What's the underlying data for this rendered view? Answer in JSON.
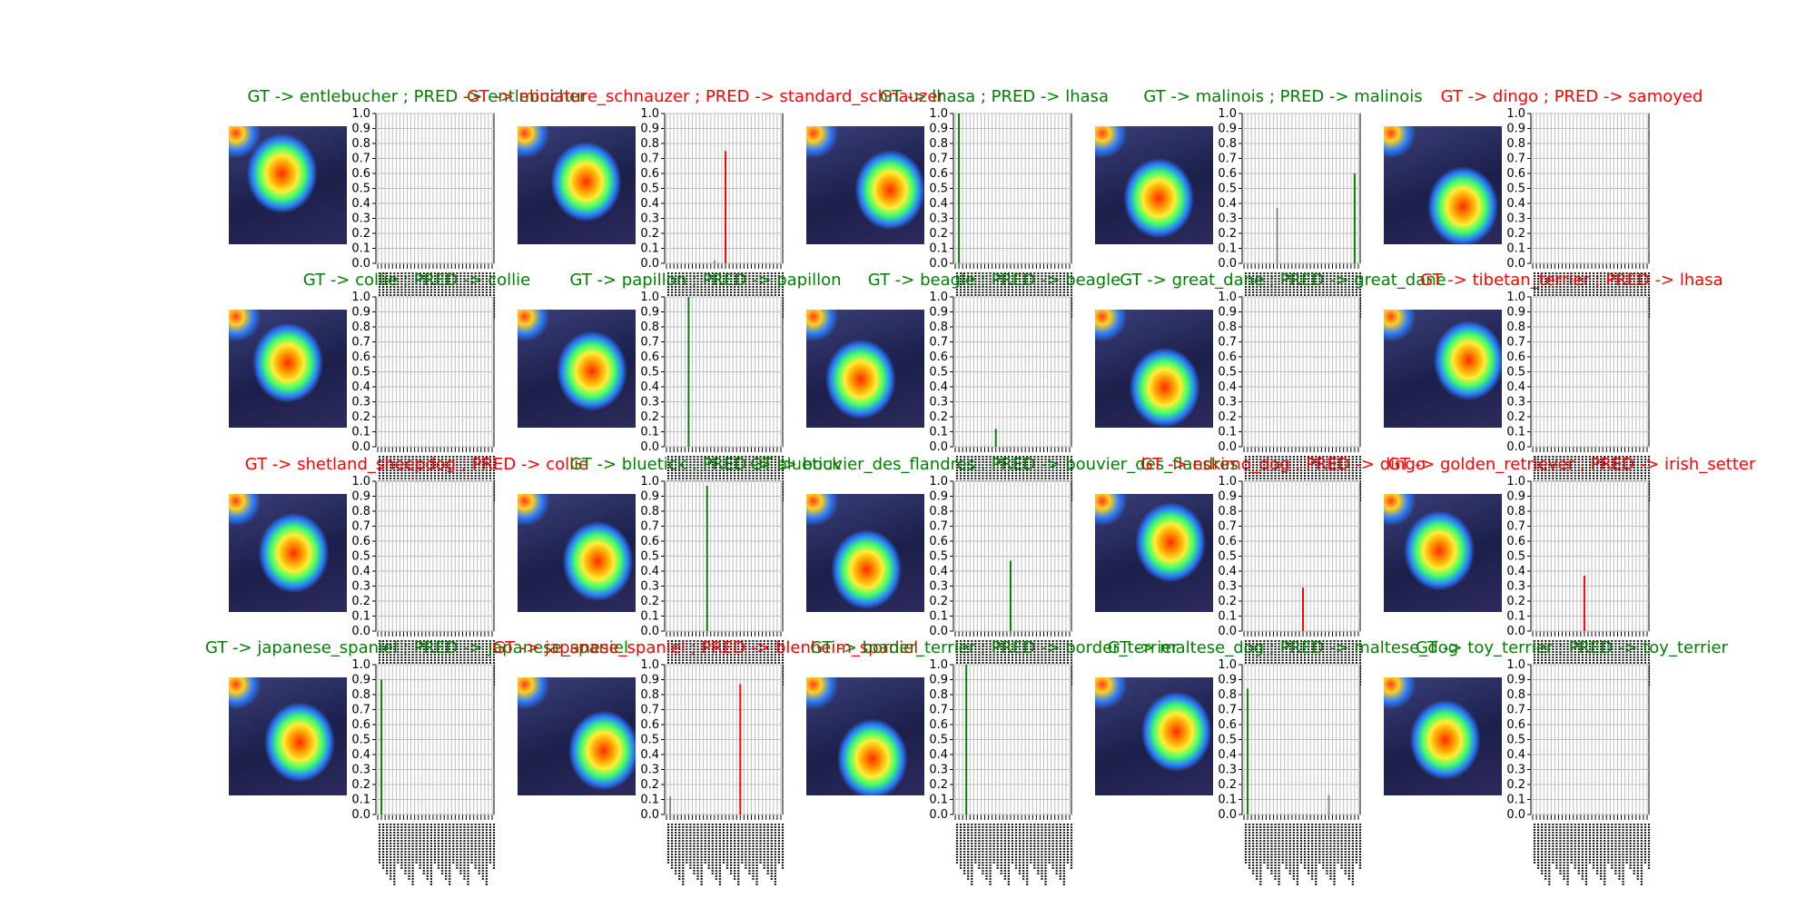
{
  "colors": {
    "correct": "#008000",
    "wrong": "#ff0000",
    "bar": "#bfbfbf"
  },
  "chart_data": {
    "type": "bar",
    "grid": true,
    "ylim": [
      0,
      1
    ],
    "yticks": [
      "0.0",
      "0.1",
      "0.2",
      "0.3",
      "0.4",
      "0.5",
      "0.6",
      "0.7",
      "0.8",
      "0.9",
      "1.0"
    ],
    "panels": [
      {
        "title": "GT -> entlebucher ; PRED -> entlebucher",
        "correct": true,
        "heat_icon": "heatmap-dog-icon",
        "peak_index": 0,
        "peak_value": 0.0,
        "second_index": 16,
        "second_value": 0.0
      },
      {
        "title": "GT -> miniature_schnauzer ; PRED -> standard_schnauzer",
        "correct": false,
        "heat_icon": "heatmap-dog-icon",
        "peak_index": 16,
        "peak_value": 0.75,
        "second_index": 13,
        "second_value": 0.02
      },
      {
        "title": "GT -> lhasa ; PRED -> lhasa",
        "correct": true,
        "heat_icon": "heatmap-dog-icon",
        "peak_index": 1,
        "peak_value": 1.0,
        "second_index": 6,
        "second_value": 0.0
      },
      {
        "title": "GT -> malinois ; PRED -> malinois",
        "correct": true,
        "heat_icon": "heatmap-dog-icon",
        "peak_index": 30,
        "peak_value": 0.6,
        "second_index": 9,
        "second_value": 0.37
      },
      {
        "title": "GT -> dingo ; PRED -> samoyed",
        "correct": false,
        "heat_icon": "heatmap-dog-icon",
        "peak_index": 20,
        "peak_value": 0.0,
        "second_index": 5,
        "second_value": 0.0
      },
      {
        "title": "GT -> collie ; PRED -> collie",
        "correct": true,
        "heat_icon": "heatmap-dog-icon",
        "peak_index": 2,
        "peak_value": 0.0,
        "second_index": 12,
        "second_value": 0.0
      },
      {
        "title": "GT -> papillon ; PRED -> papillon",
        "correct": true,
        "heat_icon": "heatmap-dog-icon",
        "peak_index": 6,
        "peak_value": 1.0,
        "second_index": 3,
        "second_value": 0.0
      },
      {
        "title": "GT -> beagle ; PRED -> beagle",
        "correct": true,
        "heat_icon": "heatmap-dog-icon",
        "peak_index": 11,
        "peak_value": 0.12,
        "second_index": 4,
        "second_value": 0.0
      },
      {
        "title": "GT -> great_dane ; PRED -> great_dane",
        "correct": true,
        "heat_icon": "heatmap-dog-icon",
        "peak_index": 25,
        "peak_value": 0.0,
        "second_index": 8,
        "second_value": 0.0
      },
      {
        "title": "GT -> tibetan_terrier ; PRED -> lhasa",
        "correct": false,
        "heat_icon": "heatmap-dog-icon",
        "peak_index": 3,
        "peak_value": 0.0,
        "second_index": 18,
        "second_value": 0.0
      },
      {
        "title": "GT -> shetland_sheepdog ; PRED -> collie",
        "correct": false,
        "heat_icon": "heatmap-dog-icon",
        "peak_index": 1,
        "peak_value": 0.0,
        "second_index": 22,
        "second_value": 0.0
      },
      {
        "title": "GT -> bluetick ; PRED -> bluetick",
        "correct": true,
        "heat_icon": "heatmap-dog-icon",
        "peak_index": 11,
        "peak_value": 0.97,
        "second_index": 2,
        "second_value": 0.0
      },
      {
        "title": "GT -> bouvier_des_flandres ; PRED -> bouvier_des_flandres",
        "correct": true,
        "heat_icon": "heatmap-dog-icon",
        "peak_index": 15,
        "peak_value": 0.47,
        "second_index": 5,
        "second_value": 0.0
      },
      {
        "title": "GT -> eskimo_dog ; PRED -> dingo",
        "correct": false,
        "heat_icon": "heatmap-dog-icon",
        "peak_index": 16,
        "peak_value": 0.29,
        "second_index": 7,
        "second_value": 0.0
      },
      {
        "title": "GT -> golden_retriever ; PRED -> irish_setter",
        "correct": false,
        "heat_icon": "heatmap-dog-icon",
        "peak_index": 14,
        "peak_value": 0.37,
        "second_index": 3,
        "second_value": 0.0
      },
      {
        "title": "GT -> japanese_spaniel ; PRED -> japanese_spaniel",
        "correct": true,
        "heat_icon": "heatmap-dog-icon",
        "peak_index": 1,
        "peak_value": 0.9,
        "second_index": 14,
        "second_value": 0.0
      },
      {
        "title": "GT -> japanese_spaniel ; PRED -> blenheim_spaniel",
        "correct": false,
        "heat_icon": "heatmap-dog-icon",
        "peak_index": 20,
        "peak_value": 0.87,
        "second_index": 1,
        "second_value": 0.12
      },
      {
        "title": "GT -> border_terrier ; PRED -> border_terrier",
        "correct": true,
        "heat_icon": "heatmap-dog-icon",
        "peak_index": 3,
        "peak_value": 1.0,
        "second_index": 10,
        "second_value": 0.0
      },
      {
        "title": "GT -> maltese_dog ; PRED -> maltese_dog",
        "correct": true,
        "heat_icon": "heatmap-dog-icon",
        "peak_index": 1,
        "peak_value": 0.84,
        "second_index": 23,
        "second_value": 0.13
      },
      {
        "title": "GT -> toy_terrier ; PRED -> toy_terrier",
        "correct": true,
        "heat_icon": "heatmap-dog-icon",
        "peak_index": 12,
        "peak_value": 0.0,
        "second_index": 4,
        "second_value": 0.0
      }
    ]
  }
}
